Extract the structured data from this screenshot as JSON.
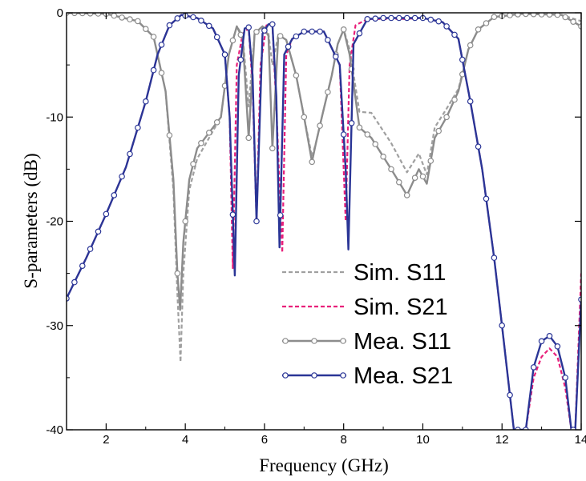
{
  "chart_data": {
    "type": "line",
    "title": "",
    "xlabel": "Frequency (GHz)",
    "ylabel": "S-parameters (dB)",
    "xlim": [
      1,
      14
    ],
    "ylim": [
      -40,
      0
    ],
    "x_ticks": [
      "2",
      "4",
      "6",
      "8",
      "10",
      "12",
      "14"
    ],
    "y_ticks": [
      "0",
      "-10",
      "-20",
      "-30",
      "-40"
    ],
    "grid": false,
    "legend_position": "lower-center",
    "series": [
      {
        "name": "Sim.  S11",
        "color": "#a0a0a0",
        "style": "dash",
        "x": [
          1.0,
          2.0,
          2.8,
          3.2,
          3.5,
          3.7,
          3.8,
          3.88,
          3.95,
          4.1,
          4.3,
          4.6,
          4.9,
          5.1,
          5.3,
          5.45,
          5.6,
          5.75,
          5.95,
          6.1,
          6.2,
          6.35,
          6.55,
          6.8,
          7.0,
          7.2,
          7.3,
          7.45,
          7.7,
          7.85,
          8.0,
          8.15,
          8.4,
          8.7,
          9.2,
          9.6,
          9.9,
          10.1,
          10.3,
          10.6,
          10.9,
          11.15,
          11.4,
          11.8,
          12.5,
          13.5,
          14.0
        ],
        "y": [
          0,
          -0.1,
          -0.8,
          -2.3,
          -7.5,
          -17,
          -27,
          -33.5,
          -25,
          -17,
          -14,
          -12,
          -10,
          -4,
          -1.3,
          -2.2,
          -9,
          -2,
          -1.3,
          -2,
          -5,
          -2.1,
          -2.6,
          -6,
          -10,
          -13.8,
          -12.5,
          -10,
          -6,
          -3,
          -1.6,
          -3.5,
          -9.5,
          -9.6,
          -12.5,
          -15.3,
          -13.5,
          -15.5,
          -11,
          -9.2,
          -7.3,
          -3.5,
          -1.6,
          -0.4,
          -0.1,
          -0.2,
          -0.8
        ]
      },
      {
        "name": "Sim.  S21",
        "color": "#e8207a",
        "style": "dash",
        "x": [
          1.0,
          1.5,
          2.0,
          2.5,
          3.0,
          3.3,
          3.6,
          3.9,
          4.3,
          4.7,
          5.0,
          5.12,
          5.2,
          5.3,
          5.45,
          5.6,
          5.7,
          5.8,
          5.9,
          6.05,
          6.2,
          6.3,
          6.45,
          6.55,
          6.7,
          7.0,
          7.5,
          7.9,
          8.05,
          8.15,
          8.3,
          8.6,
          9.0,
          9.5,
          10.0,
          10.5,
          10.9,
          11.2,
          11.5,
          11.8,
          12.0,
          12.3,
          12.5,
          12.6,
          12.8,
          13.0,
          13.2,
          13.4,
          13.6,
          13.75,
          13.85,
          14.0
        ],
        "y": [
          -27.4,
          -23.5,
          -19.3,
          -14.8,
          -8.5,
          -4,
          -1.2,
          -0.2,
          -0.5,
          -1.5,
          -4,
          -10,
          -24.5,
          -5,
          -2,
          -1.5,
          -7,
          -20,
          -5,
          -1.2,
          -1.2,
          -9,
          -23,
          -4,
          -2.5,
          -1.8,
          -1.8,
          -5,
          -20,
          -5,
          -1.2,
          -0.6,
          -0.6,
          -0.6,
          -0.5,
          -0.9,
          -2.5,
          -8.5,
          -15,
          -23.5,
          -30,
          -40,
          -40,
          -40,
          -35,
          -33,
          -32.2,
          -33,
          -36,
          -40,
          -40,
          -25
        ]
      },
      {
        "name": "Mea. S11",
        "color": "#8c8c8c",
        "style": "solid-marker",
        "x": [
          1.0,
          2.0,
          2.8,
          3.2,
          3.5,
          3.7,
          3.8,
          3.87,
          3.95,
          4.1,
          4.3,
          4.6,
          4.9,
          5.1,
          5.3,
          5.45,
          5.6,
          5.75,
          5.95,
          6.1,
          6.2,
          6.35,
          6.55,
          6.8,
          7.0,
          7.2,
          7.3,
          7.45,
          7.7,
          7.85,
          8.0,
          8.15,
          8.4,
          8.7,
          9.2,
          9.6,
          9.9,
          10.1,
          10.3,
          10.6,
          10.9,
          11.15,
          11.4,
          11.8,
          12.5,
          13.5,
          14.0
        ],
        "y": [
          0,
          -0.1,
          -0.8,
          -2.3,
          -7.5,
          -16,
          -25,
          -28.5,
          -22,
          -16,
          -13,
          -11.5,
          -10,
          -4,
          -1.3,
          -2.5,
          -12,
          -2,
          -1.3,
          -2.2,
          -13,
          -2.1,
          -2.6,
          -6,
          -10,
          -14.3,
          -12.5,
          -10,
          -6,
          -3,
          -1.6,
          -4,
          -11,
          -12,
          -15,
          -17.5,
          -15,
          -16.4,
          -12,
          -10,
          -7.5,
          -3.5,
          -1.6,
          -0.4,
          -0.1,
          -0.2,
          -1.3
        ]
      },
      {
        "name": "Mea. S21",
        "color": "#2a3596",
        "style": "solid-marker",
        "x": [
          1.0,
          1.5,
          2.0,
          2.5,
          3.0,
          3.3,
          3.6,
          3.9,
          4.3,
          4.7,
          5.0,
          5.12,
          5.25,
          5.35,
          5.5,
          5.6,
          5.7,
          5.8,
          5.85,
          5.95,
          6.1,
          6.2,
          6.3,
          6.38,
          6.5,
          6.7,
          7.0,
          7.5,
          7.9,
          8.05,
          8.12,
          8.25,
          8.6,
          9.0,
          9.5,
          10.0,
          10.5,
          10.9,
          11.2,
          11.5,
          11.8,
          12.0,
          12.3,
          12.5,
          12.6,
          12.8,
          13.0,
          13.2,
          13.4,
          13.6,
          13.75,
          13.85,
          14.0
        ],
        "y": [
          -27.4,
          -23.5,
          -19.3,
          -14.8,
          -8.5,
          -4,
          -1.2,
          -0.2,
          -0.5,
          -1.5,
          -4,
          -10,
          -25.2,
          -6,
          -1.5,
          -1.4,
          -6,
          -20,
          -14,
          -2,
          -1.1,
          -1.1,
          -8,
          -22.5,
          -4,
          -2.5,
          -1.8,
          -1.8,
          -5,
          -15,
          -22.7,
          -3,
          -0.6,
          -0.5,
          -0.5,
          -0.5,
          -0.9,
          -2.5,
          -8.5,
          -15,
          -23.5,
          -30,
          -40,
          -40,
          -40,
          -34,
          -31.5,
          -31,
          -32,
          -35,
          -40,
          -40,
          -27.5
        ]
      }
    ]
  }
}
